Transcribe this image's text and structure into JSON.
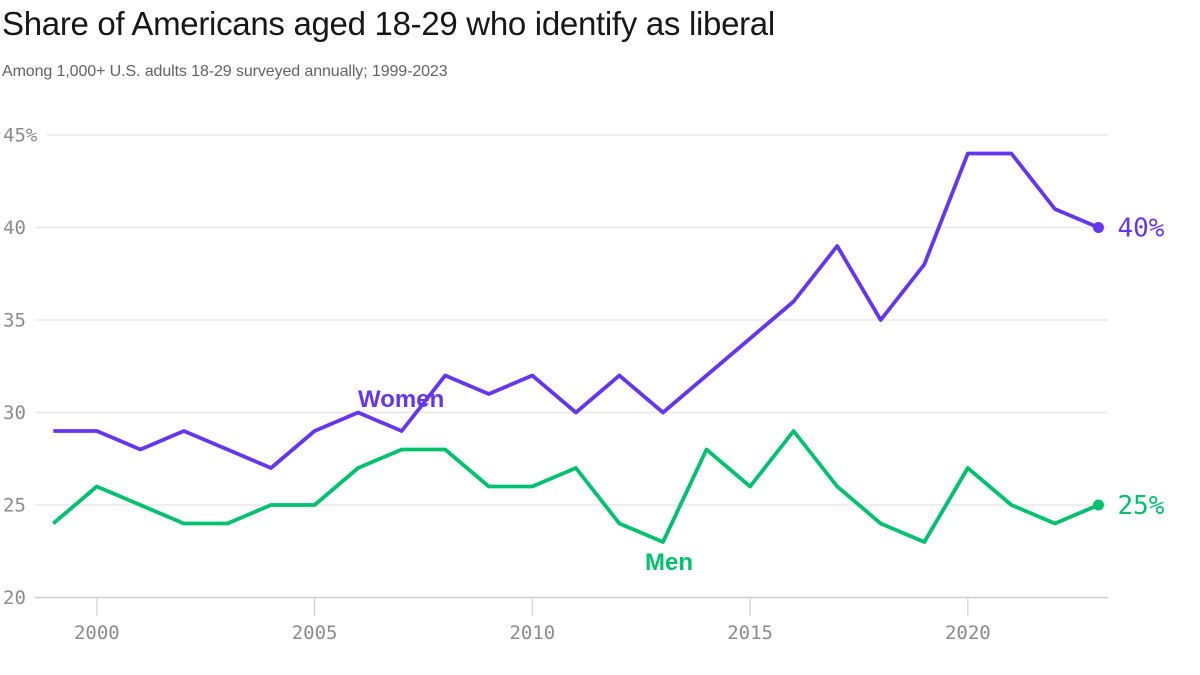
{
  "header": {
    "title": "Share of Americans aged 18-29 who identify as liberal",
    "subtitle": "Among 1,000+ U.S. adults 18-29 surveyed annually; 1999-2023"
  },
  "chart_data": {
    "type": "line",
    "title": "Share of Americans aged 18-29 who identify as liberal",
    "subtitle": "Among 1,000+ U.S. adults 18-29 surveyed annually; 1999-2023",
    "x": [
      1999,
      2000,
      2001,
      2002,
      2003,
      2004,
      2005,
      2006,
      2007,
      2008,
      2009,
      2010,
      2011,
      2012,
      2013,
      2014,
      2015,
      2016,
      2017,
      2018,
      2019,
      2020,
      2021,
      2022,
      2023
    ],
    "series": [
      {
        "name": "Women",
        "color": "#6635f0",
        "values": [
          29,
          29,
          28,
          29,
          28,
          27,
          29,
          30,
          29,
          32,
          31,
          32,
          30,
          32,
          30,
          32,
          34,
          36,
          39,
          35,
          38,
          44,
          44,
          41,
          40
        ],
        "end_label": "40%",
        "label_pos": {
          "x": 358,
          "y": 407
        }
      },
      {
        "name": "Men",
        "color": "#00c16e",
        "values": [
          24,
          26,
          25,
          24,
          24,
          25,
          25,
          27,
          28,
          28,
          26,
          26,
          27,
          24,
          23,
          28,
          26,
          29,
          26,
          24,
          23,
          27,
          25,
          24,
          25
        ],
        "end_label": "25%",
        "label_pos": {
          "x": 645,
          "y": 570
        }
      }
    ],
    "ylim": [
      20,
      45
    ],
    "y_ticks": [
      {
        "value": 45,
        "label": "45%"
      },
      {
        "value": 40,
        "label": "40"
      },
      {
        "value": 35,
        "label": "35"
      },
      {
        "value": 30,
        "label": "30"
      },
      {
        "value": 25,
        "label": "25"
      },
      {
        "value": 20,
        "label": "20"
      }
    ],
    "x_ticks": [
      "2000",
      "2005",
      "2010",
      "2015",
      "2020"
    ],
    "grid": "horizontal",
    "legend": "inline-labels",
    "colors": {
      "grid_line": "#e8e8ea",
      "axis_line": "#cfcfd3",
      "tick_mark": "#d6d6da",
      "tick_text": "#8b8b90"
    }
  }
}
